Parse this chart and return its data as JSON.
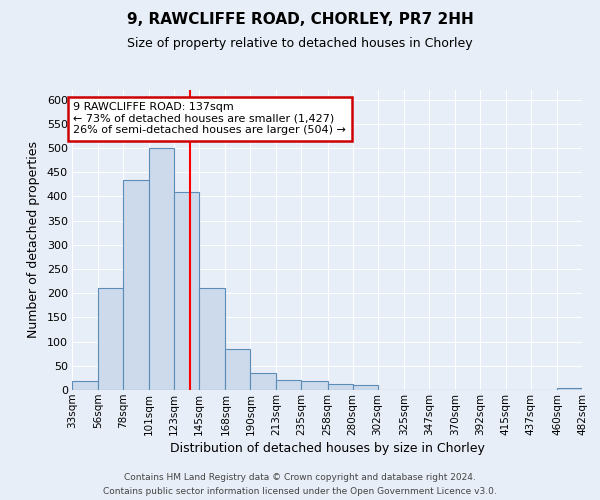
{
  "title": "9, RAWCLIFFE ROAD, CHORLEY, PR7 2HH",
  "subtitle": "Size of property relative to detached houses in Chorley",
  "xlabel": "Distribution of detached houses by size in Chorley",
  "ylabel": "Number of detached properties",
  "bin_edges": [
    33,
    56,
    78,
    101,
    123,
    145,
    168,
    190,
    213,
    235,
    258,
    280,
    302,
    325,
    347,
    370,
    392,
    415,
    437,
    460,
    482
  ],
  "bar_heights": [
    18,
    210,
    435,
    500,
    410,
    210,
    85,
    35,
    20,
    18,
    12,
    10,
    0,
    0,
    0,
    0,
    0,
    0,
    0,
    4
  ],
  "bar_color": "#ccdaeb",
  "bar_edge_color": "#5b8db8",
  "bg_color": "#e8eef7",
  "grid_color": "#ffffff",
  "red_line_x": 137,
  "annotation_line1": "9 RAWCLIFFE ROAD: 137sqm",
  "annotation_line2": "← 73% of detached houses are smaller (1,427)",
  "annotation_line3": "26% of semi-detached houses are larger (504) →",
  "annotation_box_color": "#ffffff",
  "annotation_box_edge": "#cc0000",
  "ylim": [
    0,
    620
  ],
  "yticks": [
    0,
    50,
    100,
    150,
    200,
    250,
    300,
    350,
    400,
    450,
    500,
    550,
    600
  ],
  "footer_line1": "Contains HM Land Registry data © Crown copyright and database right 2024.",
  "footer_line2": "Contains public sector information licensed under the Open Government Licence v3.0."
}
